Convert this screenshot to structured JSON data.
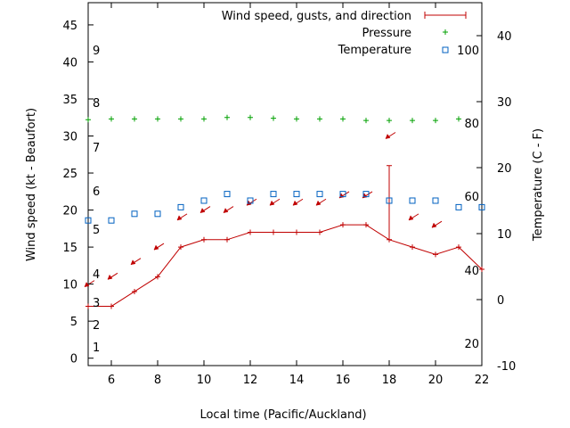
{
  "chart_data": {
    "type": "line",
    "title": "",
    "xlabel": "Local time (Pacific/Auckland)",
    "ylabel_left": "Wind speed (kt - Beaufort)",
    "ylabel_right": "Temperature (C - F)",
    "xlim": [
      5,
      22
    ],
    "ylim_left": [
      -1,
      48
    ],
    "ylim_right": [
      -10,
      45
    ],
    "x_ticks": [
      "6",
      "8",
      "10",
      "12",
      "14",
      "16",
      "18",
      "20",
      "22"
    ],
    "y_left_ticks": [
      "0",
      "5",
      "10",
      "15",
      "20",
      "25",
      "30",
      "35",
      "40",
      "45"
    ],
    "y_right_ticks": [
      "-10",
      "0",
      "10",
      "20",
      "30",
      "40"
    ],
    "beaufort_labels": [
      "1",
      "2",
      "3",
      "4",
      "5",
      "6",
      "7",
      "8",
      "9"
    ],
    "fahrenheit_labels": [
      "20",
      "40",
      "60",
      "80",
      "100"
    ],
    "legend_position": "top-right",
    "grid": false,
    "series": [
      {
        "name": "Wind speed, gusts, and direction",
        "color": "#c00000",
        "axis": "left",
        "x": [
          5,
          6,
          7,
          8,
          9,
          10,
          11,
          12,
          13,
          14,
          15,
          16,
          17,
          18,
          19,
          20,
          21,
          22
        ],
        "values": [
          7,
          7,
          9,
          11,
          15,
          16,
          16,
          17,
          17,
          17,
          17,
          18,
          18,
          16,
          15,
          14,
          15,
          12
        ],
        "gust_x": 18,
        "gust_value": 26
      },
      {
        "name": "Pressure",
        "color": "#00a000",
        "axis": "left",
        "x": [
          5,
          6,
          7,
          8,
          9,
          10,
          11,
          12,
          13,
          14,
          15,
          16,
          17,
          18,
          19,
          20,
          21
        ],
        "values": [
          32.2,
          32.3,
          32.3,
          32.3,
          32.3,
          32.3,
          32.5,
          32.5,
          32.4,
          32.3,
          32.3,
          32.3,
          32.1,
          32.1,
          32.1,
          32.1,
          32.3
        ]
      },
      {
        "name": "Temperature",
        "color": "#0060c0",
        "axis": "right",
        "x": [
          5,
          6,
          7,
          8,
          9,
          10,
          11,
          12,
          13,
          14,
          15,
          16,
          17,
          18,
          19,
          20,
          21,
          22
        ],
        "values": [
          12,
          12,
          13,
          13,
          14,
          15,
          16,
          15,
          16,
          16,
          16,
          16,
          16,
          15,
          15,
          15,
          14,
          14
        ]
      }
    ],
    "direction_arrows": {
      "color": "#c00000",
      "x": [
        5,
        6,
        7,
        8,
        9,
        10,
        11,
        12,
        13,
        14,
        15,
        16,
        17,
        18,
        19,
        20
      ],
      "y": [
        10,
        11,
        13,
        15,
        19,
        20,
        20,
        21,
        21,
        21,
        21,
        22,
        22,
        30,
        19,
        18
      ]
    }
  }
}
